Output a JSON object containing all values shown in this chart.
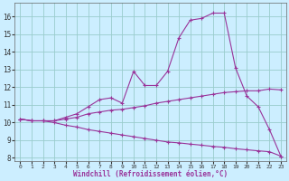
{
  "xlabel": "Windchill (Refroidissement éolien,°C)",
  "bg_color": "#cceeff",
  "grid_color": "#99cccc",
  "line_color": "#993399",
  "spine_color": "#666666",
  "xlim": [
    -0.5,
    23.5
  ],
  "ylim": [
    7.8,
    16.8
  ],
  "xticks": [
    0,
    1,
    2,
    3,
    4,
    5,
    6,
    7,
    8,
    9,
    10,
    11,
    12,
    13,
    14,
    15,
    16,
    17,
    18,
    19,
    20,
    21,
    22,
    23
  ],
  "yticks": [
    8,
    9,
    10,
    11,
    12,
    13,
    14,
    15,
    16
  ],
  "curve1_x": [
    0,
    1,
    2,
    3,
    4,
    5,
    6,
    7,
    8,
    9,
    10,
    11,
    12,
    13,
    14,
    15,
    16,
    17,
    18,
    19,
    20,
    21,
    22,
    23
  ],
  "curve1_y": [
    10.2,
    10.1,
    10.1,
    10.1,
    10.3,
    10.5,
    10.9,
    11.3,
    11.4,
    11.1,
    12.9,
    12.1,
    12.1,
    12.9,
    14.8,
    15.8,
    15.9,
    16.2,
    16.2,
    13.1,
    11.5,
    10.9,
    9.6,
    8.1
  ],
  "curve2_x": [
    0,
    1,
    2,
    3,
    4,
    5,
    6,
    7,
    8,
    9,
    10,
    11,
    12,
    13,
    14,
    15,
    16,
    17,
    18,
    19,
    20,
    21,
    22,
    23
  ],
  "curve2_y": [
    10.2,
    10.1,
    10.1,
    10.1,
    10.2,
    10.3,
    10.5,
    10.6,
    10.7,
    10.75,
    10.85,
    10.95,
    11.1,
    11.2,
    11.3,
    11.4,
    11.5,
    11.6,
    11.7,
    11.75,
    11.8,
    11.8,
    11.9,
    11.85
  ],
  "curve3_x": [
    0,
    1,
    2,
    3,
    4,
    5,
    6,
    7,
    8,
    9,
    10,
    11,
    12,
    13,
    14,
    15,
    16,
    17,
    18,
    19,
    20,
    21,
    22,
    23
  ],
  "curve3_y": [
    10.2,
    10.1,
    10.1,
    10.0,
    9.85,
    9.75,
    9.6,
    9.5,
    9.4,
    9.3,
    9.2,
    9.1,
    9.0,
    8.9,
    8.85,
    8.78,
    8.72,
    8.65,
    8.6,
    8.52,
    8.46,
    8.4,
    8.35,
    8.1
  ]
}
